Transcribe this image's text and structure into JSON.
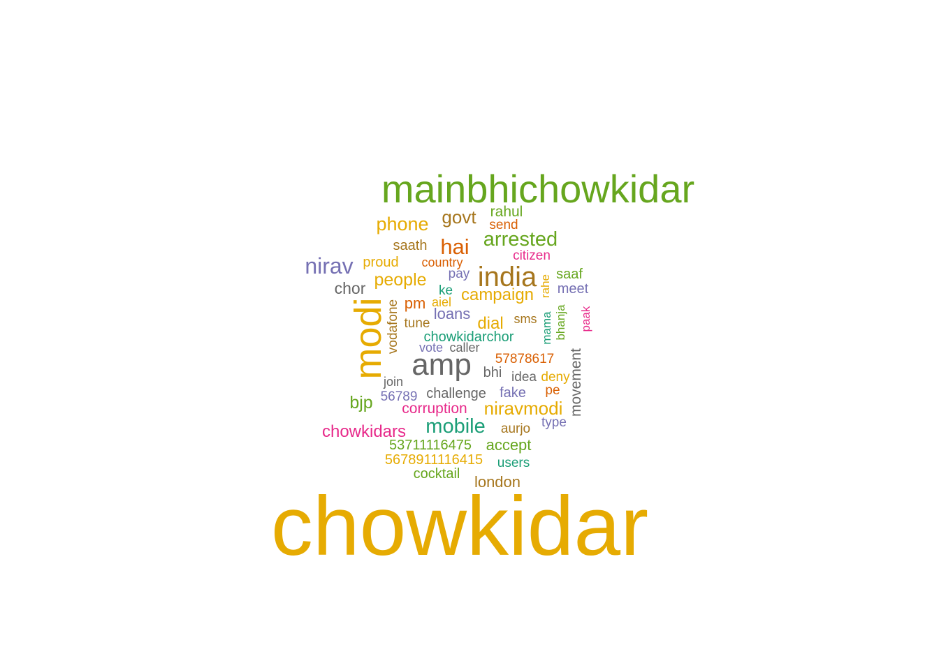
{
  "palette": {
    "orange": "#E6AB02",
    "green": "#66A61E",
    "gray": "#666666",
    "brown": "#A6761D",
    "purple": "#7570B3",
    "teal": "#1B9E77",
    "rust": "#D95F02",
    "magenta": "#E7298A"
  },
  "words": [
    {
      "text": "chowkidar",
      "color": "orange"
    },
    {
      "text": "mainbhichowkidar",
      "color": "green"
    },
    {
      "text": "modi",
      "color": "orange"
    },
    {
      "text": "amp",
      "color": "gray"
    },
    {
      "text": "india",
      "color": "brown"
    },
    {
      "text": "nirav",
      "color": "purple"
    },
    {
      "text": "hai",
      "color": "rust"
    },
    {
      "text": "mobile",
      "color": "teal"
    },
    {
      "text": "arrested",
      "color": "green"
    },
    {
      "text": "phone",
      "color": "orange"
    },
    {
      "text": "govt",
      "color": "brown"
    },
    {
      "text": "niravmodi",
      "color": "orange"
    },
    {
      "text": "chowkidars",
      "color": "magenta"
    },
    {
      "text": "people",
      "color": "orange"
    },
    {
      "text": "campaign",
      "color": "orange"
    },
    {
      "text": "chor",
      "color": "gray"
    },
    {
      "text": "bjp",
      "color": "green"
    },
    {
      "text": "dial",
      "color": "orange"
    },
    {
      "text": "loans",
      "color": "purple"
    },
    {
      "text": "london",
      "color": "brown"
    },
    {
      "text": "accept",
      "color": "green"
    },
    {
      "text": "pm",
      "color": "rust"
    },
    {
      "text": "movement",
      "color": "gray"
    },
    {
      "text": "rahul",
      "color": "green"
    },
    {
      "text": "corruption",
      "color": "magenta"
    },
    {
      "text": "challenge",
      "color": "gray"
    },
    {
      "text": "chowkidarchor",
      "color": "teal"
    },
    {
      "text": "proud",
      "color": "orange"
    },
    {
      "text": "saath",
      "color": "brown"
    },
    {
      "text": "citizen",
      "color": "magenta"
    },
    {
      "text": "fake",
      "color": "purple"
    },
    {
      "text": "57878617",
      "color": "rust"
    },
    {
      "text": "53711116475",
      "color": "green"
    },
    {
      "text": "5678911116415",
      "color": "orange"
    },
    {
      "text": "cocktail",
      "color": "green"
    },
    {
      "text": "tune",
      "color": "brown"
    },
    {
      "text": "vodafone",
      "color": "brown"
    },
    {
      "text": "meet",
      "color": "purple"
    },
    {
      "text": "saaf",
      "color": "green"
    },
    {
      "text": "country",
      "color": "rust"
    },
    {
      "text": "pay",
      "color": "purple"
    },
    {
      "text": "send",
      "color": "rust"
    },
    {
      "text": "idea",
      "color": "gray"
    },
    {
      "text": "deny",
      "color": "orange"
    },
    {
      "text": "join",
      "color": "gray"
    },
    {
      "text": "56789",
      "color": "purple"
    },
    {
      "text": "aurjo",
      "color": "brown"
    },
    {
      "text": "type",
      "color": "purple"
    },
    {
      "text": "bhi",
      "color": "gray"
    },
    {
      "text": "caller",
      "color": "gray"
    },
    {
      "text": "vote",
      "color": "purple"
    },
    {
      "text": "sms",
      "color": "brown"
    },
    {
      "text": "ke",
      "color": "teal"
    },
    {
      "text": "aiel",
      "color": "orange"
    },
    {
      "text": "users",
      "color": "teal"
    },
    {
      "text": "pe",
      "color": "rust"
    },
    {
      "text": "rahe",
      "color": "orange"
    },
    {
      "text": "mama",
      "color": "teal"
    },
    {
      "text": "bhanja",
      "color": "green"
    },
    {
      "text": "paak",
      "color": "magenta"
    }
  ]
}
